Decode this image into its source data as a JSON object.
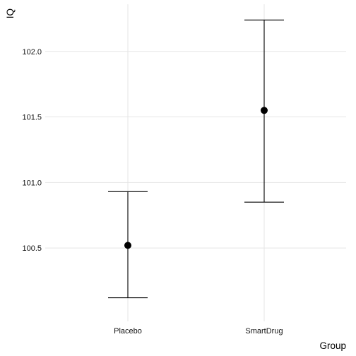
{
  "chart_data": {
    "type": "scatter",
    "xlabel": "Group",
    "ylabel": "IQ",
    "categories": [
      "Placebo",
      "SmartDrug"
    ],
    "series": [
      {
        "points": [
          {
            "x": "Placebo",
            "y": 100.52,
            "ymin": 100.12,
            "ymax": 100.93
          },
          {
            "x": "SmartDrug",
            "y": 101.55,
            "ymin": 100.85,
            "ymax": 102.24
          }
        ]
      }
    ],
    "ylim": [
      99.94,
      102.36
    ],
    "yticks": [
      "100.5",
      "101.0",
      "101.5",
      "102.0"
    ],
    "grid": true,
    "colors": {
      "point": "#000000",
      "errorbar": "#000000",
      "grid": "#e5e5e5"
    }
  }
}
